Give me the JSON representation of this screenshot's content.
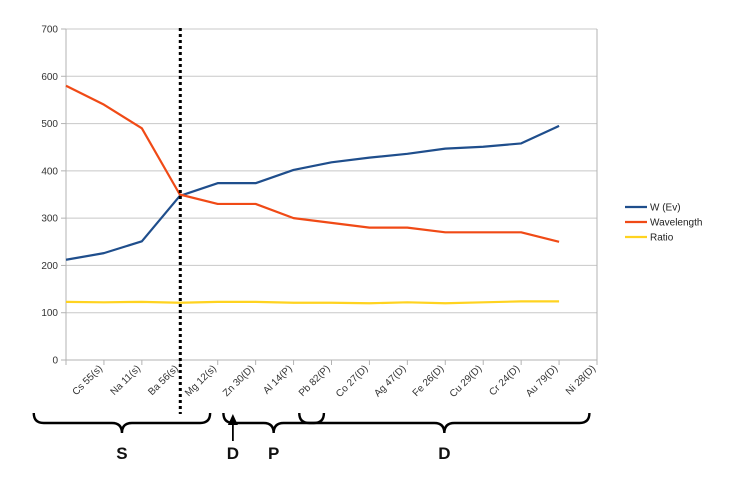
{
  "chart_data": {
    "type": "line",
    "categories": [
      "Cs 55(s)",
      "Na 11(s)",
      "Ba 56(s)",
      "Mg 12(s)",
      "Zn 30(D)",
      "Al 14(P)",
      "Pb 82(P)",
      "Co 27(D)",
      "Ag 47(D)",
      "Fe 26(D)",
      "Cu 29(D)",
      "Cr 24(D)",
      "Au 79(D)",
      "Ni 28(D)"
    ],
    "series": [
      {
        "name": "W (Ev)",
        "color": "#1f4e8c",
        "values": [
          212,
          226,
          251,
          347,
          374,
          374,
          402,
          418,
          428,
          436,
          447,
          451,
          458,
          495
        ]
      },
      {
        "name": "Wavelength",
        "color": "#f04a16",
        "values": [
          580,
          540,
          490,
          350,
          330,
          330,
          300,
          290,
          280,
          280,
          270,
          270,
          270,
          250
        ]
      },
      {
        "name": "Ratio",
        "color": "#ffd320",
        "values": [
          123,
          122,
          123,
          121,
          123,
          123,
          121,
          121,
          120,
          122,
          120,
          122,
          124,
          124
        ]
      }
    ],
    "ylim": [
      0,
      700
    ],
    "yticks": [
      0,
      100,
      200,
      300,
      400,
      500,
      600,
      700
    ],
    "grid": true,
    "legend": "right",
    "annotations": {
      "divider_after_category": "Mg 12(s)",
      "groups": [
        {
          "label": "S",
          "from": "Cs 55(s)",
          "to": "Mg 12(s)"
        },
        {
          "label": "D",
          "arrow_to": "Zn 30(D)"
        },
        {
          "label": "P",
          "from": "Al 14(P)",
          "to": "Pb 82(P)"
        },
        {
          "label": "D",
          "from": "Co 27(D)",
          "to": "Ni 28(D)"
        }
      ]
    }
  }
}
